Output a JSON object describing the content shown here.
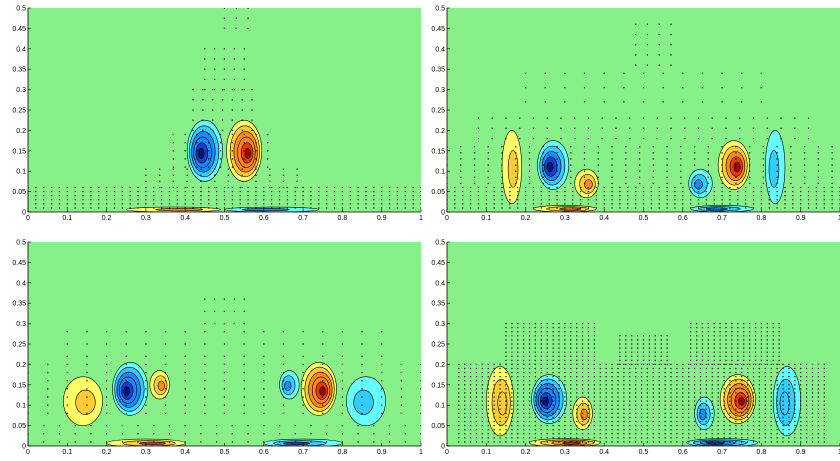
{
  "figure": {
    "background": "#ffffff",
    "field_color": "#88f088",
    "positive_colors": [
      "#ffff66",
      "#ffcc33",
      "#ff8a1a",
      "#e83b0b",
      "#a60000"
    ],
    "negative_colors": [
      "#66ffff",
      "#33ccff",
      "#1a8aff",
      "#1840d0",
      "#001a6e"
    ],
    "grid": false,
    "legend": "none"
  },
  "chart_data": [
    {
      "type": "contour",
      "title": "",
      "xlabel": "",
      "ylabel": "",
      "xlim": [
        0,
        1
      ],
      "ylim": [
        0,
        0.5
      ],
      "xticks": [
        0,
        0.1,
        0.2,
        0.3,
        0.4,
        0.5,
        0.6,
        0.7,
        0.8,
        0.9,
        1
      ],
      "yticks": [
        0,
        0.05,
        0.1,
        0.15,
        0.2,
        0.25,
        0.3,
        0.35,
        0.4,
        0.45,
        0.5
      ],
      "xtick_labels": [
        "0",
        "0.1",
        "0.2",
        "0.3",
        "0.4",
        "0.5",
        "0.6",
        "0.7",
        "0.8",
        "0.9",
        "1"
      ],
      "ytick_labels": [
        "0",
        "0.05",
        "0.1",
        "0.15",
        "0.2",
        "0.25",
        "0.3",
        "0.35",
        "0.4",
        "0.45",
        "0.5"
      ],
      "vortices": [
        {
          "x": 0.45,
          "y": 0.15,
          "rx": 0.045,
          "ry": 0.075,
          "sign": -1,
          "strength": 1.0,
          "levels": 6
        },
        {
          "x": 0.55,
          "y": 0.15,
          "rx": 0.045,
          "ry": 0.075,
          "sign": 1,
          "strength": 1.0,
          "levels": 6
        },
        {
          "x": 0.37,
          "y": 0.006,
          "rx": 0.12,
          "ry": 0.006,
          "sign": 1,
          "strength": 0.5,
          "levels": 2
        },
        {
          "x": 0.62,
          "y": 0.006,
          "rx": 0.12,
          "ry": 0.006,
          "sign": -1,
          "strength": 0.5,
          "levels": 2
        }
      ],
      "point_grid": [
        {
          "x0": 0.0,
          "x1": 1.0,
          "y0": 0.01,
          "y1": 0.06,
          "dx": 0.02,
          "dy": 0.01
        },
        {
          "x0": 0.3,
          "x1": 0.7,
          "y0": 0.06,
          "y1": 0.11,
          "dx": 0.035,
          "dy": 0.015
        },
        {
          "x0": 0.37,
          "x1": 0.63,
          "y0": 0.11,
          "y1": 0.2,
          "dx": 0.03,
          "dy": 0.02
        },
        {
          "x0": 0.42,
          "x1": 0.58,
          "y0": 0.2,
          "y1": 0.3,
          "dx": 0.025,
          "dy": 0.025
        },
        {
          "x0": 0.45,
          "x1": 0.55,
          "y0": 0.3,
          "y1": 0.42,
          "dx": 0.025,
          "dy": 0.025
        },
        {
          "x0": 0.5,
          "x1": 0.56,
          "y0": 0.45,
          "y1": 0.5,
          "dx": 0.03,
          "dy": 0.025
        }
      ]
    },
    {
      "type": "contour",
      "title": "",
      "xlabel": "",
      "ylabel": "",
      "xlim": [
        0,
        1
      ],
      "ylim": [
        0,
        0.5
      ],
      "xticks": [
        0,
        0.1,
        0.2,
        0.3,
        0.4,
        0.5,
        0.6,
        0.7,
        0.8,
        0.9,
        1
      ],
      "yticks": [
        0,
        0.05,
        0.1,
        0.15,
        0.2,
        0.25,
        0.3,
        0.35,
        0.4,
        0.45,
        0.5
      ],
      "xtick_labels": [
        "0",
        "0.1",
        "0.2",
        "0.3",
        "0.4",
        "0.5",
        "0.6",
        "0.7",
        "0.8",
        "0.9",
        "1"
      ],
      "ytick_labels": [
        "0",
        "0.05",
        "0.1",
        "0.15",
        "0.2",
        "0.25",
        "0.3",
        "0.35",
        "0.4",
        "0.45",
        "0.5"
      ],
      "vortices": [
        {
          "x": 0.27,
          "y": 0.115,
          "rx": 0.04,
          "ry": 0.06,
          "sign": -1,
          "strength": 1.0,
          "levels": 5
        },
        {
          "x": 0.73,
          "y": 0.115,
          "rx": 0.04,
          "ry": 0.06,
          "sign": 1,
          "strength": 1.0,
          "levels": 5
        },
        {
          "x": 0.165,
          "y": 0.11,
          "rx": 0.025,
          "ry": 0.09,
          "sign": 1,
          "strength": 0.35,
          "levels": 2
        },
        {
          "x": 0.835,
          "y": 0.11,
          "rx": 0.025,
          "ry": 0.09,
          "sign": -1,
          "strength": 0.35,
          "levels": 2
        },
        {
          "x": 0.355,
          "y": 0.07,
          "rx": 0.03,
          "ry": 0.035,
          "sign": 1,
          "strength": 0.5,
          "levels": 3
        },
        {
          "x": 0.645,
          "y": 0.07,
          "rx": 0.03,
          "ry": 0.035,
          "sign": -1,
          "strength": 0.5,
          "levels": 3
        },
        {
          "x": 0.3,
          "y": 0.008,
          "rx": 0.08,
          "ry": 0.008,
          "sign": 1,
          "strength": 0.6,
          "levels": 3
        },
        {
          "x": 0.7,
          "y": 0.008,
          "rx": 0.08,
          "ry": 0.008,
          "sign": -1,
          "strength": 0.6,
          "levels": 3
        }
      ],
      "point_grid": [
        {
          "x0": 0.0,
          "x1": 1.0,
          "y0": 0.01,
          "y1": 0.06,
          "dx": 0.02,
          "dy": 0.01
        },
        {
          "x0": 0.0,
          "x1": 1.0,
          "y0": 0.07,
          "y1": 0.16,
          "dx": 0.035,
          "dy": 0.015
        },
        {
          "x0": 0.08,
          "x1": 0.92,
          "y0": 0.18,
          "y1": 0.25,
          "dx": 0.035,
          "dy": 0.025
        },
        {
          "x0": 0.2,
          "x1": 0.8,
          "y0": 0.27,
          "y1": 0.34,
          "dx": 0.05,
          "dy": 0.035
        },
        {
          "x0": 0.48,
          "x1": 0.58,
          "y0": 0.36,
          "y1": 0.46,
          "dx": 0.03,
          "dy": 0.025
        }
      ]
    },
    {
      "type": "contour",
      "title": "",
      "xlabel": "",
      "ylabel": "",
      "xlim": [
        0,
        1
      ],
      "ylim": [
        0,
        0.5
      ],
      "xticks": [
        0,
        0.1,
        0.2,
        0.3,
        0.4,
        0.5,
        0.6,
        0.7,
        0.8,
        0.9,
        1
      ],
      "yticks": [
        0,
        0.05,
        0.1,
        0.15,
        0.2,
        0.25,
        0.3,
        0.35,
        0.4,
        0.45,
        0.5
      ],
      "xtick_labels": [
        "0",
        "0.1",
        "0.2",
        "0.3",
        "0.4",
        "0.5",
        "0.6",
        "0.7",
        "0.8",
        "0.9",
        "1"
      ],
      "ytick_labels": [
        "0",
        "0.05",
        "0.1",
        "0.15",
        "0.2",
        "0.25",
        "0.3",
        "0.35",
        "0.4",
        "0.45",
        "0.5"
      ],
      "vortices": [
        {
          "x": 0.26,
          "y": 0.14,
          "rx": 0.045,
          "ry": 0.065,
          "sign": -1,
          "strength": 1.0,
          "levels": 6
        },
        {
          "x": 0.74,
          "y": 0.14,
          "rx": 0.045,
          "ry": 0.065,
          "sign": 1,
          "strength": 1.0,
          "levels": 6
        },
        {
          "x": 0.335,
          "y": 0.15,
          "rx": 0.025,
          "ry": 0.035,
          "sign": 1,
          "strength": 0.45,
          "levels": 3
        },
        {
          "x": 0.665,
          "y": 0.15,
          "rx": 0.025,
          "ry": 0.035,
          "sign": -1,
          "strength": 0.45,
          "levels": 3
        },
        {
          "x": 0.14,
          "y": 0.11,
          "rx": 0.05,
          "ry": 0.06,
          "sign": 1,
          "strength": 0.3,
          "levels": 2
        },
        {
          "x": 0.86,
          "y": 0.11,
          "rx": 0.05,
          "ry": 0.06,
          "sign": -1,
          "strength": 0.3,
          "levels": 2
        },
        {
          "x": 0.3,
          "y": 0.007,
          "rx": 0.1,
          "ry": 0.01,
          "sign": 1,
          "strength": 0.7,
          "levels": 3
        },
        {
          "x": 0.7,
          "y": 0.007,
          "rx": 0.1,
          "ry": 0.01,
          "sign": -1,
          "strength": 0.7,
          "levels": 3
        }
      ],
      "point_grid": [
        {
          "x0": 0.0,
          "x1": 1.0,
          "y0": 0.01,
          "y1": 0.06,
          "dx": 0.04,
          "dy": 0.02
        },
        {
          "x0": 0.0,
          "x1": 1.0,
          "y0": 0.08,
          "y1": 0.2,
          "dx": 0.05,
          "dy": 0.02
        },
        {
          "x0": 0.1,
          "x1": 0.9,
          "y0": 0.22,
          "y1": 0.28,
          "dx": 0.05,
          "dy": 0.03
        },
        {
          "x0": 0.45,
          "x1": 0.55,
          "y0": 0.3,
          "y1": 0.37,
          "dx": 0.025,
          "dy": 0.03
        }
      ]
    },
    {
      "type": "contour",
      "title": "",
      "xlabel": "",
      "ylabel": "",
      "xlim": [
        0,
        1
      ],
      "ylim": [
        0,
        0.5
      ],
      "xticks": [
        0,
        0.1,
        0.2,
        0.3,
        0.4,
        0.5,
        0.6,
        0.7,
        0.8,
        0.9,
        1
      ],
      "yticks": [
        0,
        0.05,
        0.1,
        0.15,
        0.2,
        0.25,
        0.3,
        0.35,
        0.4,
        0.45,
        0.5
      ],
      "xtick_labels": [
        "0",
        "0.1",
        "0.2",
        "0.3",
        "0.4",
        "0.5",
        "0.6",
        "0.7",
        "0.8",
        "0.9",
        "1"
      ],
      "ytick_labels": [
        "0",
        "0.05",
        "0.1",
        "0.15",
        "0.2",
        "0.25",
        "0.3",
        "0.35",
        "0.4",
        "0.45",
        "0.5"
      ],
      "vortices": [
        {
          "x": 0.26,
          "y": 0.115,
          "rx": 0.045,
          "ry": 0.06,
          "sign": -1,
          "strength": 1.0,
          "levels": 6
        },
        {
          "x": 0.74,
          "y": 0.115,
          "rx": 0.045,
          "ry": 0.06,
          "sign": 1,
          "strength": 1.0,
          "levels": 6
        },
        {
          "x": 0.345,
          "y": 0.08,
          "rx": 0.025,
          "ry": 0.04,
          "sign": 1,
          "strength": 0.55,
          "levels": 3
        },
        {
          "x": 0.655,
          "y": 0.08,
          "rx": 0.025,
          "ry": 0.04,
          "sign": -1,
          "strength": 0.55,
          "levels": 3
        },
        {
          "x": 0.135,
          "y": 0.11,
          "rx": 0.035,
          "ry": 0.085,
          "sign": 1,
          "strength": 0.35,
          "levels": 3
        },
        {
          "x": 0.865,
          "y": 0.11,
          "rx": 0.035,
          "ry": 0.085,
          "sign": -1,
          "strength": 0.35,
          "levels": 3
        },
        {
          "x": 0.3,
          "y": 0.008,
          "rx": 0.09,
          "ry": 0.01,
          "sign": 1,
          "strength": 0.8,
          "levels": 4
        },
        {
          "x": 0.7,
          "y": 0.008,
          "rx": 0.09,
          "ry": 0.01,
          "sign": -1,
          "strength": 0.8,
          "levels": 4
        }
      ],
      "point_grid": [
        {
          "x0": 0.03,
          "x1": 0.97,
          "y0": 0.01,
          "y1": 0.2,
          "dx": 0.015,
          "dy": 0.01
        },
        {
          "x0": 0.15,
          "x1": 0.38,
          "y0": 0.2,
          "y1": 0.3,
          "dx": 0.015,
          "dy": 0.01
        },
        {
          "x0": 0.62,
          "x1": 0.85,
          "y0": 0.2,
          "y1": 0.3,
          "dx": 0.015,
          "dy": 0.01
        },
        {
          "x0": 0.44,
          "x1": 0.56,
          "y0": 0.2,
          "y1": 0.27,
          "dx": 0.015,
          "dy": 0.01
        }
      ]
    }
  ]
}
